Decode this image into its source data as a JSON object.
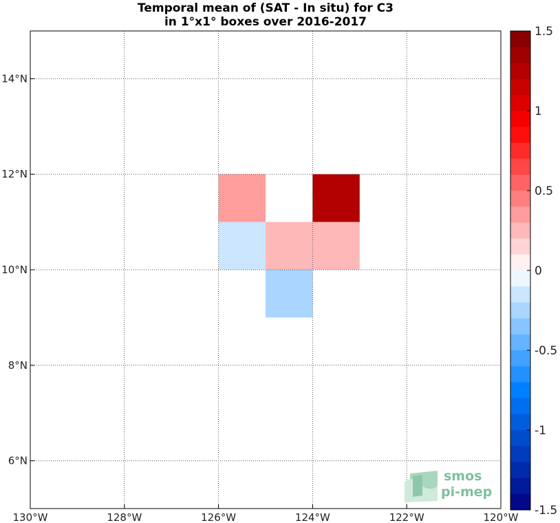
{
  "chart_data": {
    "type": "heatmap",
    "title": "Temporal mean of (SAT - In situ) for C3",
    "subtitle": "in 1°x1° boxes over 2016-2017",
    "xlim": [
      -130,
      -120
    ],
    "ylim": [
      5,
      15
    ],
    "x_ticks": [
      {
        "value": -130,
        "label": "130°W"
      },
      {
        "value": -128,
        "label": "128°W"
      },
      {
        "value": -126,
        "label": "126°W"
      },
      {
        "value": -124,
        "label": "124°W"
      },
      {
        "value": -122,
        "label": "122°W"
      },
      {
        "value": -120,
        "label": "120°W"
      }
    ],
    "y_ticks": [
      {
        "value": 6,
        "label": "6°N"
      },
      {
        "value": 8,
        "label": "8°N"
      },
      {
        "value": 10,
        "label": "10°N"
      },
      {
        "value": 12,
        "label": "12°N"
      },
      {
        "value": 14,
        "label": "14°N"
      }
    ],
    "grid": true,
    "cells": [
      {
        "lon": -126,
        "lat": 11,
        "value": 0.35
      },
      {
        "lon": -124,
        "lat": 11,
        "value": 1.3
      },
      {
        "lon": -126,
        "lat": 10,
        "value": -0.15
      },
      {
        "lon": -125,
        "lat": 10,
        "value": 0.25
      },
      {
        "lon": -124,
        "lat": 10,
        "value": 0.25
      },
      {
        "lon": -125,
        "lat": 9,
        "value": -0.25
      }
    ],
    "colorbar": {
      "min": -1.5,
      "max": 1.5,
      "steps": 30,
      "ticks": [
        {
          "value": 1.5,
          "label": "1.5"
        },
        {
          "value": 1,
          "label": "1"
        },
        {
          "value": 0.5,
          "label": "0.5"
        },
        {
          "value": 0,
          "label": "0"
        },
        {
          "value": -0.5,
          "label": "-0.5"
        },
        {
          "value": -1,
          "label": "-1"
        },
        {
          "value": -1.5,
          "label": "-1.5"
        }
      ]
    }
  },
  "logo": {
    "line1": "smos",
    "line2": "pi-mep"
  }
}
